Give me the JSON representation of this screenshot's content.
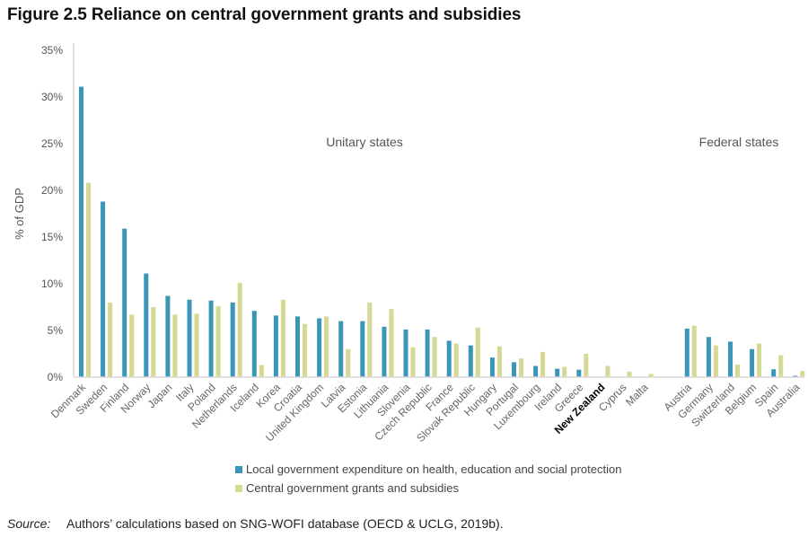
{
  "figure": {
    "title": "Figure 2.5 Reliance on central government grants and subsidies",
    "source_label": "Source:",
    "source_text": "Authors’ calculations based on SNG-WOFI database (OECD & UCLG, 2019b)."
  },
  "chart_data": {
    "type": "bar",
    "title": "Figure 2.5 Reliance on central government grants and subsidies",
    "xlabel": "",
    "ylabel": "% of GDP",
    "ylim": [
      0,
      35
    ],
    "yticks": [
      0,
      5,
      10,
      15,
      20,
      25,
      30,
      35
    ],
    "ytick_labels": [
      "0%",
      "5%",
      "10%",
      "15%",
      "20%",
      "25%",
      "30%",
      "35%"
    ],
    "grid": false,
    "legend_position": "bottom",
    "highlight_category": "New Zealand",
    "groups": [
      {
        "label": "Unitary states",
        "categories": [
          "Denmark",
          "Sweden",
          "Finland",
          "Norway",
          "Japan",
          "Italy",
          "Poland",
          "Netherlands",
          "Iceland",
          "Korea",
          "Croatia",
          "United Kingdom",
          "Latvia",
          "Estonia",
          "Lithuania",
          "Slovenia",
          "Czech Republic",
          "France",
          "Slovak Republic",
          "Hungary",
          "Portugal",
          "Luxembourg",
          "Ireland",
          "Greece",
          "New Zealand",
          "Cyprus",
          "Malta"
        ]
      },
      {
        "label": "Federal states",
        "categories": [
          "Austria",
          "Germany",
          "Switzerland",
          "Belgium",
          "Spain",
          "Australia"
        ]
      }
    ],
    "categories": [
      "Denmark",
      "Sweden",
      "Finland",
      "Norway",
      "Japan",
      "Italy",
      "Poland",
      "Netherlands",
      "Iceland",
      "Korea",
      "Croatia",
      "United Kingdom",
      "Latvia",
      "Estonia",
      "Lithuania",
      "Slovenia",
      "Czech Republic",
      "France",
      "Slovak Republic",
      "Hungary",
      "Portugal",
      "Luxembourg",
      "Ireland",
      "Greece",
      "New Zealand",
      "Cyprus",
      "Malta",
      "",
      "Austria",
      "Germany",
      "Switzerland",
      "Belgium",
      "Spain",
      "Australia"
    ],
    "series": [
      {
        "name": "Local government expenditure on health, education and social protection",
        "color": "#3a96b8",
        "values": [
          31.1,
          18.8,
          15.9,
          11.1,
          8.7,
          8.3,
          8.2,
          8.0,
          7.1,
          6.6,
          6.5,
          6.3,
          6.0,
          6.0,
          5.4,
          5.1,
          5.1,
          3.9,
          3.4,
          2.1,
          1.6,
          1.2,
          0.9,
          0.8,
          0.0,
          0.0,
          0.0,
          null,
          5.2,
          4.3,
          3.8,
          3.0,
          0.85,
          0.15
        ]
      },
      {
        "name": "Central government grants and subsidies",
        "color": "#d6d993",
        "values": [
          20.8,
          8.0,
          6.7,
          7.5,
          6.7,
          6.8,
          7.6,
          10.1,
          1.3,
          8.3,
          5.7,
          6.5,
          3.0,
          8.0,
          7.3,
          3.2,
          4.3,
          3.6,
          5.3,
          3.3,
          2.0,
          2.7,
          1.1,
          2.5,
          1.2,
          0.6,
          0.35,
          null,
          5.5,
          3.4,
          1.35,
          3.6,
          2.35,
          0.65
        ]
      }
    ]
  }
}
